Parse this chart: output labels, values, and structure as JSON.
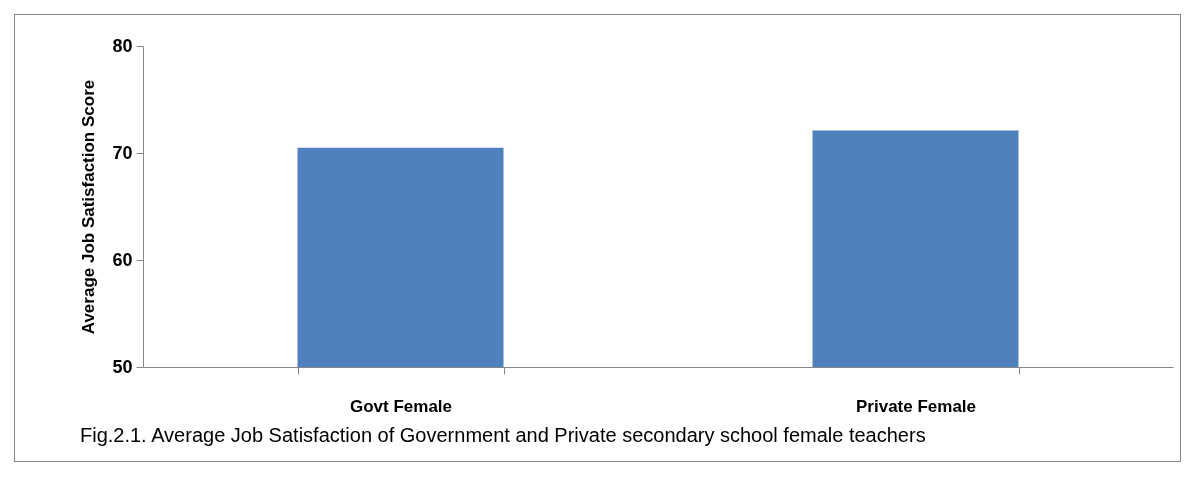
{
  "chart_data": {
    "type": "bar",
    "categories": [
      "Govt Female",
      "Private Female"
    ],
    "values": [
      70.5,
      72.1
    ],
    "color": "#4f81bd",
    "ylabel": "Average Job Satisfaction Score",
    "ylim": [
      50,
      80
    ],
    "yticks": [
      50,
      60,
      70,
      80
    ],
    "grid": false,
    "legend": false,
    "annotations": [
      "Fig.2.1. Average Job Satisfaction of Government and Private secondary school female teachers"
    ]
  }
}
